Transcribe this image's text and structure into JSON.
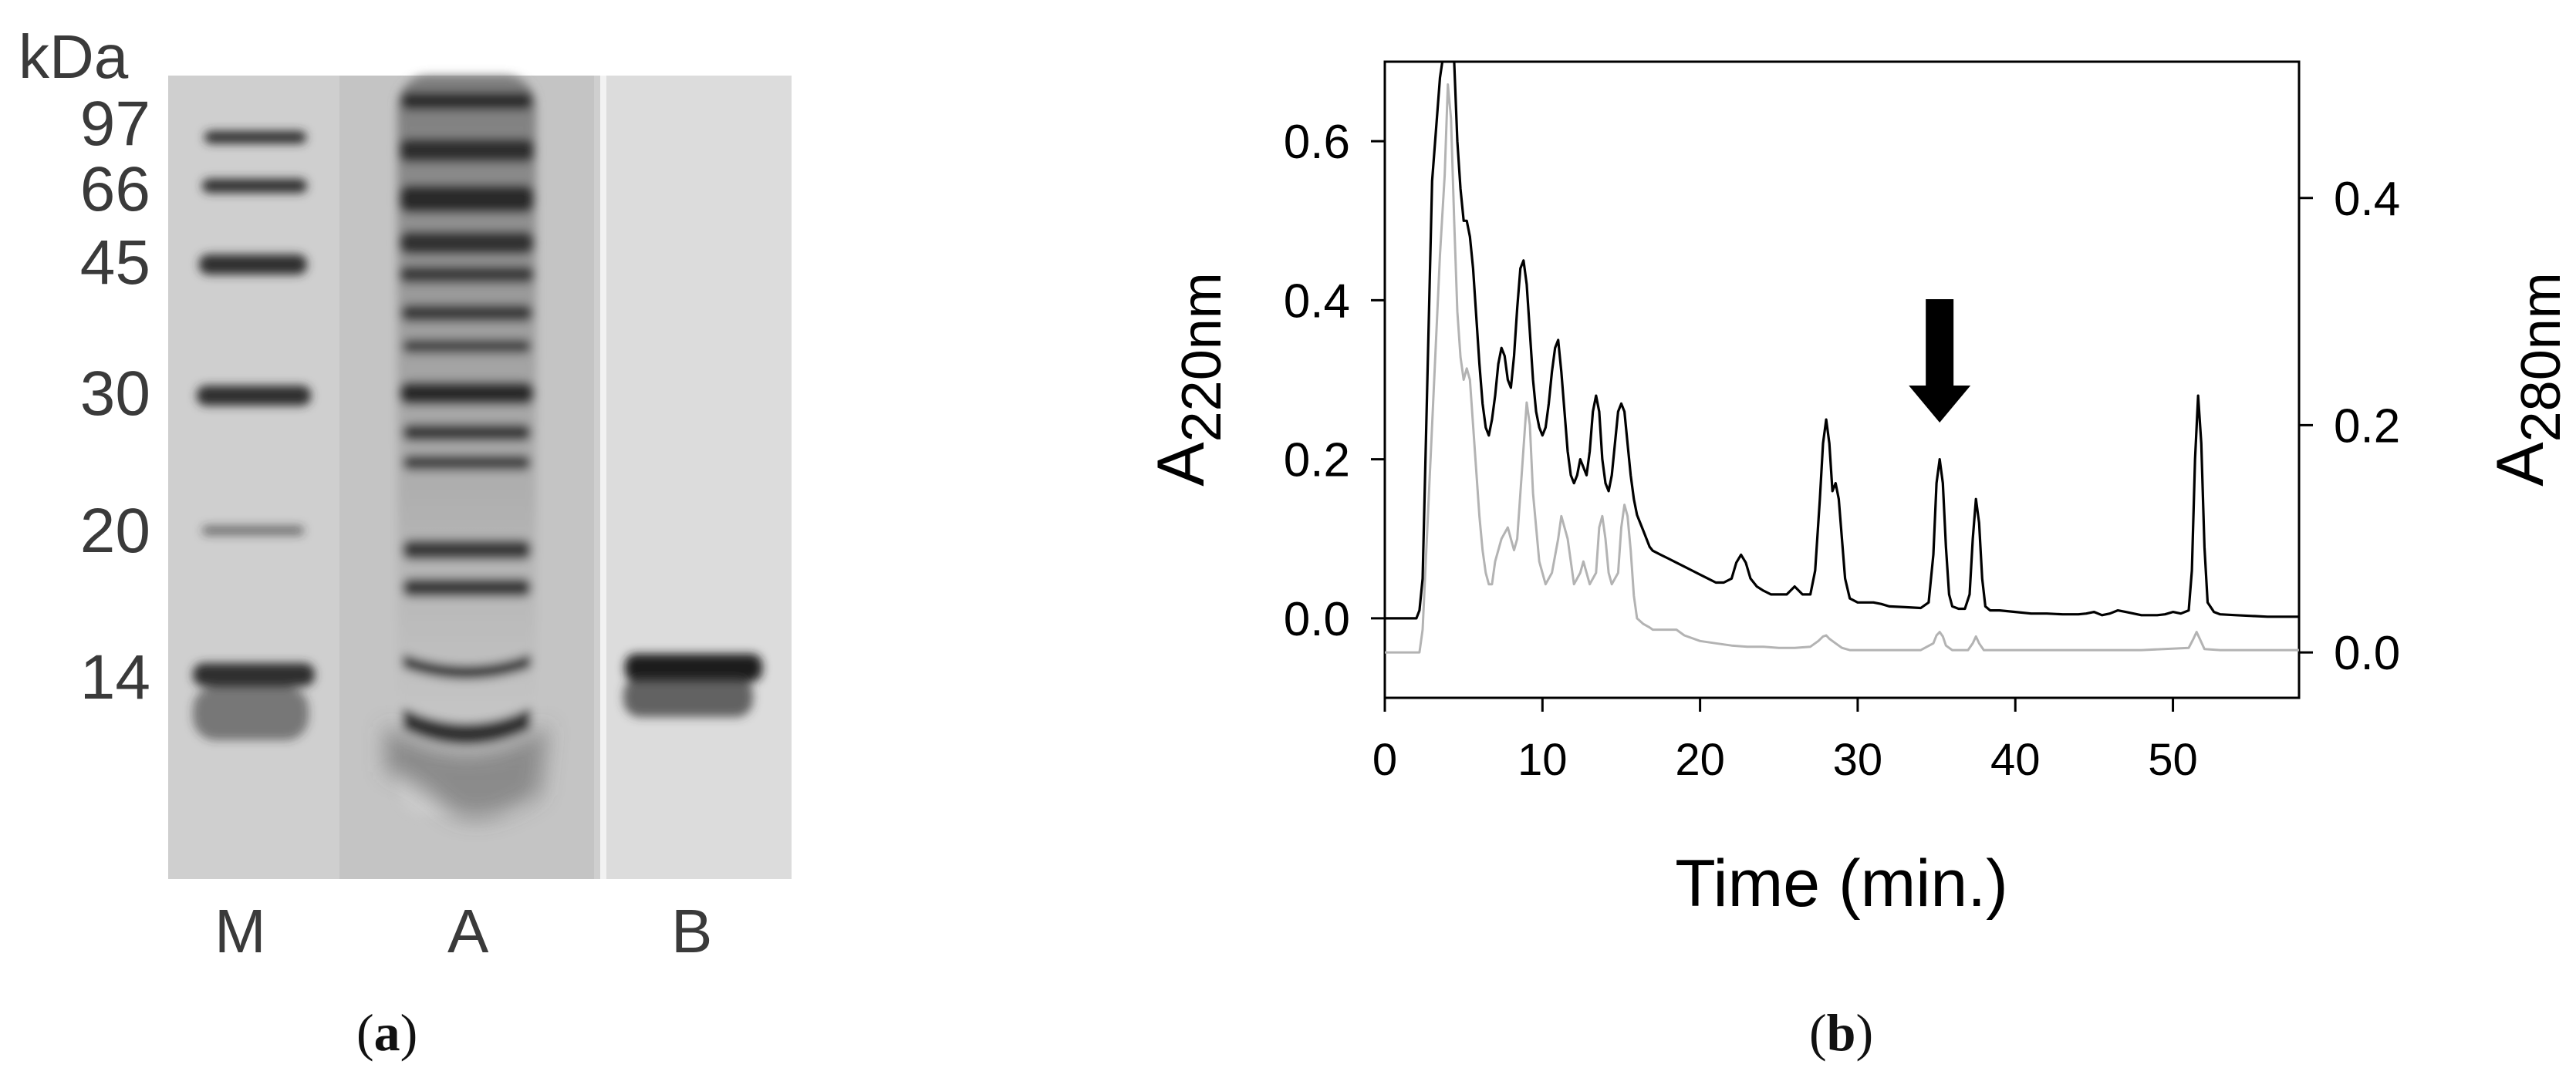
{
  "panels": {
    "a": {
      "caption_open": "(",
      "caption_letter": "a",
      "caption_close": ")",
      "unit_label": "kDa",
      "markers": [
        "97",
        "66",
        "45",
        "30",
        "20",
        "14"
      ],
      "lanes": [
        "M",
        "A",
        "B"
      ]
    },
    "b": {
      "caption_open": "(",
      "caption_letter": "b",
      "caption_close": ")"
    }
  },
  "chart_data": {
    "type": "line",
    "xlabel": "Time (min.)",
    "ylabel_left_main": "A",
    "ylabel_left_sub": "220nm",
    "ylabel_right_main": "A",
    "ylabel_right_sub": "280nm",
    "xlim": [
      0,
      58
    ],
    "ylim_left": [
      -0.1,
      0.7
    ],
    "ylim_right": [
      -0.04,
      0.52
    ],
    "x_ticks": [
      "0",
      "10",
      "20",
      "30",
      "40",
      "50"
    ],
    "y_left_ticks": [
      "0.0",
      "0.2",
      "0.4",
      "0.6"
    ],
    "y_right_ticks": [
      "0.0",
      "0.2",
      "0.4"
    ],
    "annotation": {
      "type": "arrow",
      "x": 35.2
    },
    "series": [
      {
        "axis": "left",
        "color": "#000000",
        "x": [
          0,
          2.0,
          2.2,
          2.4,
          3.0,
          3.5,
          3.8,
          4.0,
          4.2,
          4.4,
          4.6,
          4.8,
          5.0,
          5.2,
          5.4,
          5.6,
          5.8,
          6.0,
          6.2,
          6.4,
          6.6,
          6.8,
          7.0,
          7.2,
          7.4,
          7.6,
          7.8,
          8.0,
          8.2,
          8.4,
          8.6,
          8.8,
          9.0,
          9.2,
          9.4,
          9.6,
          9.8,
          10.0,
          10.2,
          10.4,
          10.6,
          10.8,
          11.0,
          11.2,
          11.4,
          11.6,
          11.8,
          12.0,
          12.2,
          12.4,
          12.6,
          12.8,
          13.0,
          13.2,
          13.4,
          13.6,
          13.8,
          14.0,
          14.2,
          14.4,
          14.6,
          14.8,
          15.0,
          15.2,
          15.4,
          15.6,
          15.8,
          16.0,
          16.2,
          16.4,
          16.6,
          16.8,
          17.0,
          17.5,
          18.0,
          18.5,
          19.0,
          19.5,
          20.0,
          20.5,
          21.0,
          21.5,
          22.0,
          22.3,
          22.6,
          22.9,
          23.2,
          23.6,
          24.0,
          24.5,
          25.0,
          25.5,
          26.0,
          26.5,
          27.0,
          27.3,
          27.6,
          27.8,
          28.0,
          28.2,
          28.4,
          28.6,
          28.8,
          29.0,
          29.2,
          29.5,
          30.0,
          30.5,
          31.0,
          31.5,
          32.0,
          33.0,
          34.0,
          34.5,
          34.8,
          35.0,
          35.2,
          35.4,
          35.6,
          35.8,
          36.0,
          36.4,
          36.8,
          37.1,
          37.3,
          37.5,
          37.7,
          37.9,
          38.1,
          38.4,
          39.0,
          40.0,
          41.0,
          42.0,
          43.0,
          44.0,
          44.5,
          45.0,
          45.5,
          46.0,
          46.5,
          47.0,
          48.0,
          49.0,
          49.5,
          50.0,
          50.5,
          51.0,
          51.2,
          51.4,
          51.6,
          51.8,
          52.0,
          52.2,
          52.6,
          53.0,
          54.0,
          55.0,
          56.0,
          57.0,
          58.0
        ],
        "y": [
          0.0,
          0.0,
          0.01,
          0.05,
          0.55,
          0.68,
          0.72,
          0.8,
          0.78,
          0.7,
          0.6,
          0.54,
          0.5,
          0.5,
          0.48,
          0.44,
          0.38,
          0.32,
          0.27,
          0.24,
          0.23,
          0.25,
          0.28,
          0.32,
          0.34,
          0.33,
          0.3,
          0.29,
          0.33,
          0.39,
          0.44,
          0.45,
          0.42,
          0.36,
          0.3,
          0.26,
          0.24,
          0.23,
          0.24,
          0.27,
          0.31,
          0.34,
          0.35,
          0.31,
          0.26,
          0.21,
          0.18,
          0.17,
          0.18,
          0.2,
          0.19,
          0.18,
          0.21,
          0.26,
          0.28,
          0.26,
          0.2,
          0.17,
          0.16,
          0.18,
          0.22,
          0.26,
          0.27,
          0.26,
          0.22,
          0.18,
          0.15,
          0.13,
          0.12,
          0.11,
          0.1,
          0.09,
          0.085,
          0.08,
          0.075,
          0.07,
          0.065,
          0.06,
          0.055,
          0.05,
          0.045,
          0.045,
          0.05,
          0.07,
          0.08,
          0.07,
          0.05,
          0.04,
          0.035,
          0.03,
          0.03,
          0.03,
          0.04,
          0.03,
          0.03,
          0.06,
          0.15,
          0.22,
          0.25,
          0.22,
          0.16,
          0.17,
          0.15,
          0.1,
          0.05,
          0.025,
          0.02,
          0.02,
          0.02,
          0.018,
          0.015,
          0.014,
          0.013,
          0.02,
          0.08,
          0.17,
          0.2,
          0.17,
          0.09,
          0.03,
          0.015,
          0.012,
          0.012,
          0.03,
          0.1,
          0.15,
          0.12,
          0.05,
          0.015,
          0.01,
          0.01,
          0.008,
          0.006,
          0.006,
          0.005,
          0.005,
          0.006,
          0.008,
          0.004,
          0.006,
          0.01,
          0.008,
          0.004,
          0.004,
          0.005,
          0.008,
          0.006,
          0.01,
          0.06,
          0.2,
          0.28,
          0.22,
          0.09,
          0.02,
          0.008,
          0.005,
          0.004,
          0.003,
          0.002,
          0.002,
          0.002
        ]
      },
      {
        "axis": "right",
        "color": "#b3b3b3",
        "x": [
          0,
          2.2,
          2.4,
          3.0,
          3.5,
          3.8,
          4.0,
          4.2,
          4.4,
          4.6,
          4.8,
          5.0,
          5.2,
          5.4,
          5.6,
          5.8,
          6.0,
          6.2,
          6.4,
          6.6,
          6.8,
          7.0,
          7.4,
          7.8,
          8.0,
          8.2,
          8.4,
          8.6,
          8.8,
          9.0,
          9.2,
          9.4,
          9.8,
          10.2,
          10.6,
          11.0,
          11.2,
          11.4,
          11.6,
          11.8,
          12.0,
          12.4,
          12.6,
          12.8,
          13.0,
          13.4,
          13.6,
          13.8,
          14.0,
          14.2,
          14.4,
          14.8,
          15.0,
          15.2,
          15.4,
          15.6,
          15.8,
          16.0,
          16.4,
          16.8,
          17.0,
          17.5,
          18.0,
          18.5,
          19.0,
          20.0,
          21.0,
          22.0,
          23.0,
          24.0,
          25.0,
          26.0,
          27.0,
          27.5,
          27.8,
          28.0,
          28.2,
          28.4,
          28.6,
          29.0,
          29.5,
          30.0,
          32.0,
          34.0,
          34.8,
          35.0,
          35.2,
          35.4,
          35.6,
          36.0,
          37.0,
          37.3,
          37.5,
          37.7,
          38.0,
          40.0,
          44.0,
          48.0,
          51.0,
          51.3,
          51.5,
          51.7,
          52.0,
          53.0,
          58.0
        ],
        "y": [
          0.0,
          0.0,
          0.02,
          0.2,
          0.35,
          0.42,
          0.5,
          0.47,
          0.38,
          0.3,
          0.26,
          0.24,
          0.25,
          0.24,
          0.2,
          0.16,
          0.12,
          0.09,
          0.07,
          0.06,
          0.06,
          0.08,
          0.1,
          0.11,
          0.1,
          0.09,
          0.1,
          0.14,
          0.18,
          0.22,
          0.2,
          0.14,
          0.08,
          0.06,
          0.07,
          0.1,
          0.12,
          0.11,
          0.1,
          0.08,
          0.06,
          0.07,
          0.08,
          0.07,
          0.06,
          0.07,
          0.11,
          0.12,
          0.1,
          0.07,
          0.06,
          0.07,
          0.11,
          0.13,
          0.12,
          0.09,
          0.05,
          0.03,
          0.025,
          0.022,
          0.02,
          0.02,
          0.02,
          0.02,
          0.015,
          0.01,
          0.008,
          0.006,
          0.005,
          0.005,
          0.004,
          0.004,
          0.005,
          0.01,
          0.014,
          0.015,
          0.012,
          0.01,
          0.008,
          0.004,
          0.002,
          0.002,
          0.002,
          0.002,
          0.008,
          0.015,
          0.018,
          0.014,
          0.006,
          0.002,
          0.002,
          0.008,
          0.014,
          0.008,
          0.002,
          0.002,
          0.002,
          0.002,
          0.004,
          0.012,
          0.018,
          0.012,
          0.003,
          0.002,
          0.002
        ]
      }
    ]
  }
}
